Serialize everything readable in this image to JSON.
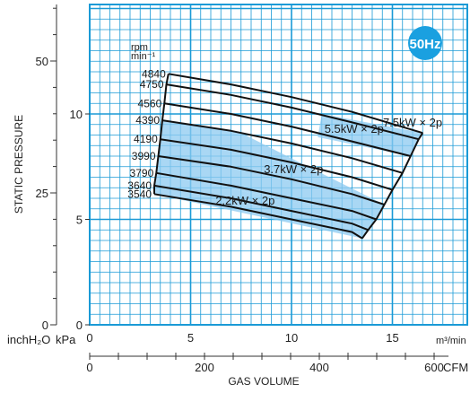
{
  "chart_data": {
    "type": "line",
    "xlabel": "GAS VOLUME",
    "ylabel": "STATIC PRESSURE",
    "x_unit_bottom": "CFM",
    "x_unit_top": "m³/min",
    "y_unit_left": "inchH₂O",
    "y_unit_right": "kPa",
    "x_ticks_m3min": [
      "0",
      "5",
      "10",
      "15"
    ],
    "x_ticks_cfm": [
      "0",
      "200",
      "400",
      "600"
    ],
    "y_ticks_kpa": [
      "0",
      "5",
      "10"
    ],
    "y_ticks_inch": [
      "0",
      "25",
      "50"
    ],
    "xlim_m3min": [
      0,
      18.5
    ],
    "ylim_kpa": [
      0,
      15.5
    ],
    "frequency_badge": "50Hz",
    "grid": true,
    "speed_axis_label": [
      "rpm",
      "min⁻¹"
    ],
    "speed_labels": [
      "4840",
      "4750",
      "4560",
      "4390",
      "4190",
      "3990",
      "3790",
      "3640",
      "3540"
    ],
    "series": [
      {
        "name": "4840",
        "x": [
          3.9,
          7.0,
          10.0,
          13.0,
          16.5
        ],
        "y": [
          11.9,
          11.4,
          10.8,
          10.1,
          9.1
        ]
      },
      {
        "name": "4750",
        "x": [
          3.8,
          7.0,
          10.0,
          13.0,
          16.3
        ],
        "y": [
          11.4,
          10.9,
          10.3,
          9.6,
          8.8
        ]
      },
      {
        "name": "4560",
        "x": [
          3.7,
          7.0,
          10.0,
          13.0,
          15.9
        ],
        "y": [
          10.5,
          10.0,
          9.4,
          8.7,
          8.0
        ]
      },
      {
        "name": "4390",
        "x": [
          3.6,
          7.0,
          10.0,
          13.0,
          15.5
        ],
        "y": [
          9.7,
          9.2,
          8.6,
          7.9,
          7.2
        ]
      },
      {
        "name": "4190",
        "x": [
          3.5,
          7.0,
          10.0,
          13.0,
          15.0
        ],
        "y": [
          8.8,
          8.3,
          7.7,
          7.0,
          6.4
        ]
      },
      {
        "name": "3990",
        "x": [
          3.4,
          7.0,
          10.0,
          13.0,
          14.6
        ],
        "y": [
          8.0,
          7.5,
          6.9,
          6.2,
          5.7
        ]
      },
      {
        "name": "3790",
        "x": [
          3.3,
          7.0,
          10.0,
          13.0,
          14.2
        ],
        "y": [
          7.2,
          6.6,
          6.0,
          5.4,
          5.0
        ]
      },
      {
        "name": "3640",
        "x": [
          3.2,
          7.0,
          10.0,
          13.0,
          13.8
        ],
        "y": [
          6.6,
          6.0,
          5.4,
          4.8,
          4.5
        ]
      },
      {
        "name": "3540",
        "x": [
          3.2,
          7.0,
          10.0,
          13.0,
          13.5
        ],
        "y": [
          6.2,
          5.6,
          5.0,
          4.4,
          4.1
        ]
      }
    ],
    "motor_regions": [
      {
        "label": "7.5kW × 2p",
        "polygon": [
          [
            11.5,
            10.0
          ],
          [
            16.5,
            9.1
          ],
          [
            16.3,
            8.8
          ],
          [
            15.9,
            8.0
          ],
          [
            11.3,
            8.9
          ]
        ]
      },
      {
        "label": "3.7kW × 2p",
        "polygon": [
          [
            3.6,
            9.7
          ],
          [
            7.5,
            9.1
          ],
          [
            10.4,
            7.7
          ],
          [
            14.6,
            5.7
          ],
          [
            14.2,
            5.0
          ],
          [
            3.3,
            7.2
          ]
        ]
      },
      {
        "label": "2.2kW × 2p",
        "polygon": [
          [
            3.3,
            7.2
          ],
          [
            14.2,
            5.0
          ],
          [
            13.8,
            4.5
          ],
          [
            13.5,
            4.1
          ],
          [
            3.2,
            6.2
          ]
        ]
      }
    ],
    "annotations": [
      "5.5kW × 2p",
      "7.5kW × 2p",
      "3.7kW × 2p",
      "2.2kW × 2p"
    ]
  }
}
